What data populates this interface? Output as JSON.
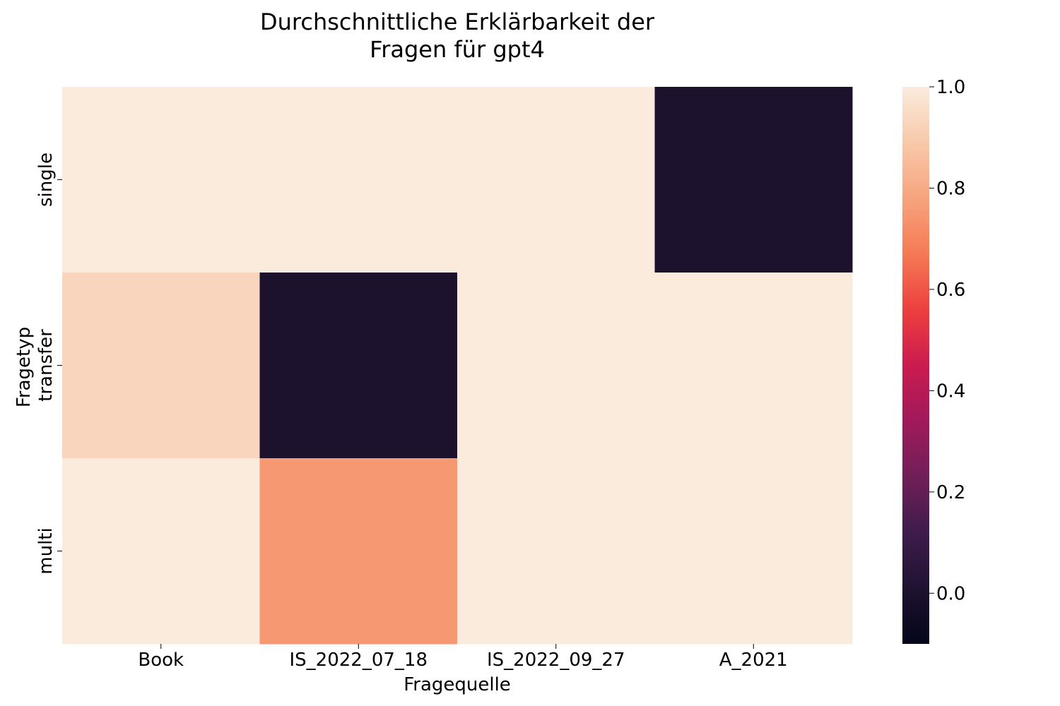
{
  "chart_data": {
    "type": "heatmap",
    "title": [
      "Durchschnittliche Erklärbarkeit der",
      "Fragen für gpt4"
    ],
    "xlabel": "Fragequelle",
    "ylabel": "Fragetyp",
    "x_categories": [
      "Book",
      "IS_2022_07_18",
      "IS_2022_09_27",
      "A_2021"
    ],
    "y_categories": [
      "single",
      "transfer",
      "multi"
    ],
    "values": [
      [
        1.0,
        1.0,
        1.0,
        0.0
      ],
      [
        0.93,
        0.0,
        1.0,
        1.0
      ],
      [
        1.0,
        0.75,
        1.0,
        1.0
      ]
    ],
    "colorbar": {
      "vmin": -0.1,
      "vmax": 1.0,
      "ticks": [
        0.0,
        0.2,
        0.4,
        0.6,
        0.8,
        1.0
      ],
      "tick_labels": [
        "0.0",
        "0.2",
        "0.4",
        "0.6",
        "0.8",
        "1.0"
      ],
      "colormap": "rocket",
      "colormap_stops": [
        "#03051a",
        "#1f1330",
        "#3e1c4c",
        "#701f57",
        "#a11a5b",
        "#cb1b4f",
        "#ed3f3f",
        "#f57a54",
        "#f7a47e",
        "#f8c9aa",
        "#faebdd"
      ]
    }
  }
}
